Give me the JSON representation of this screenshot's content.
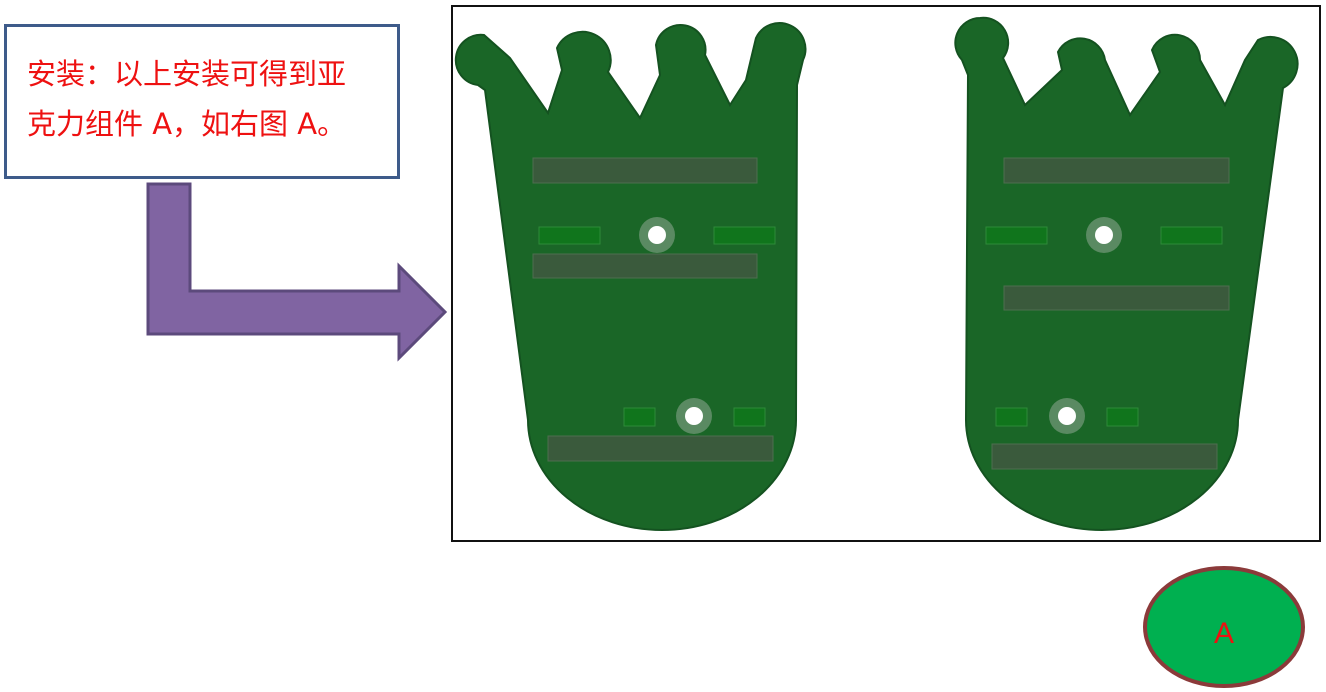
{
  "note": {
    "line1": "安装：以上安装可得到亚",
    "line2": "克力组件 A，如右图 A。"
  },
  "badge": {
    "label": "A"
  },
  "colors": {
    "board": "#1a6627",
    "board_edge": "#145220",
    "silkscreen": "#3a5a3c",
    "pad": "#10751c",
    "arrow_fill": "#8064a2",
    "arrow_stroke": "#5c4a7c",
    "note_border": "#3e5b8a",
    "note_text": "#ee1111",
    "badge_fill": "#00b050",
    "badge_border": "#8b3a3a"
  }
}
